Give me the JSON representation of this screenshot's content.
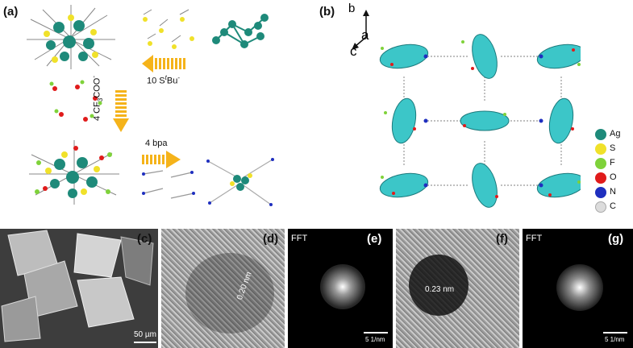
{
  "panels": {
    "a": {
      "label": "(a)"
    },
    "b": {
      "label": "(b)"
    },
    "c": {
      "label": "(c)",
      "scale": "50 µm"
    },
    "d": {
      "label": "(d)",
      "spacing": "0.20 nm"
    },
    "e": {
      "label": "(e)",
      "fft": "FFT",
      "scale": "5 1/nm"
    },
    "f": {
      "label": "(f)",
      "spacing": "0.23 nm"
    },
    "g": {
      "label": "(g)",
      "fft": "FFT",
      "scale": "5 1/nm"
    }
  },
  "scheme": {
    "step1": "10 S",
    "step1_sup": "t",
    "step1_rest": "Bu",
    "step1_end": "-",
    "step2": "4 CF",
    "step2_sub": "3",
    "step2_rest": "COO",
    "step2_end": "-",
    "step3": "4 bpa"
  },
  "axes": {
    "b": "b",
    "a": "a",
    "c": "c"
  },
  "legend": [
    {
      "symbol": "Ag",
      "color": "#1e8a7a"
    },
    {
      "symbol": "S",
      "color": "#f0e12a"
    },
    {
      "symbol": "F",
      "color": "#7fd23a"
    },
    {
      "symbol": "O",
      "color": "#e01b1b"
    },
    {
      "symbol": "N",
      "color": "#1f2fbf"
    },
    {
      "symbol": "C",
      "color": "#dcdcdc"
    }
  ]
}
